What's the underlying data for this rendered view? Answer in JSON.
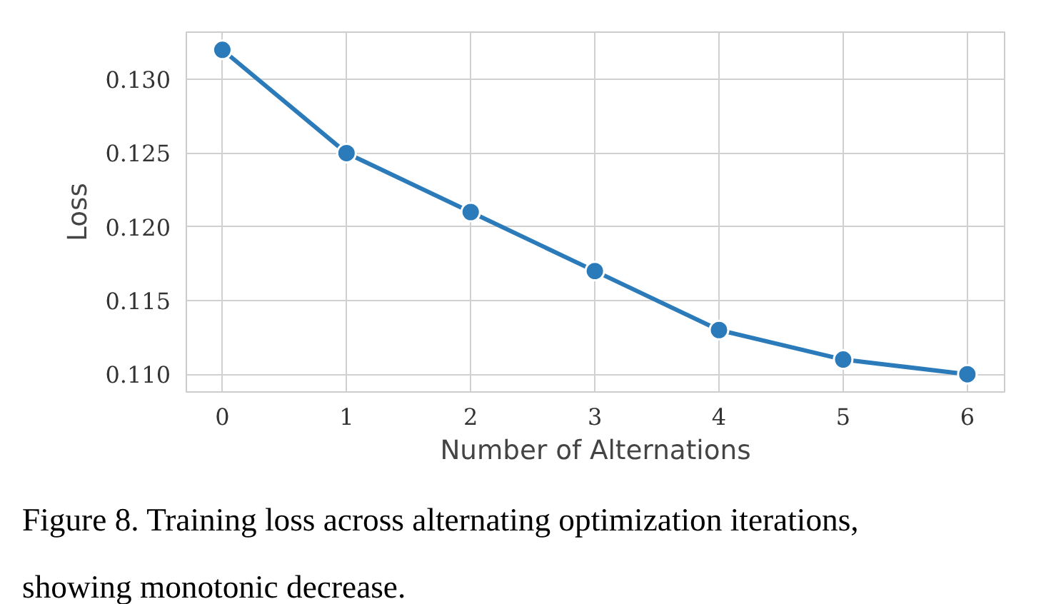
{
  "chart_data": {
    "type": "line",
    "xlabel": "Number of Alternations",
    "ylabel": "Loss",
    "x": [
      0,
      1,
      2,
      3,
      4,
      5,
      6
    ],
    "series": [
      {
        "color": "#2b7bba",
        "values": [
          0.132,
          0.125,
          0.121,
          0.117,
          0.113,
          0.111,
          0.11
        ]
      }
    ],
    "xlim": [
      -0.29,
      6.3
    ],
    "xticks": [
      0,
      1,
      2,
      3,
      4,
      5,
      6
    ],
    "ylim": [
      0.1088,
      0.1332
    ],
    "yticks": [
      {
        "value": 0.11,
        "label": "0.110"
      },
      {
        "value": 0.115,
        "label": "0.115"
      },
      {
        "value": 0.12,
        "label": "0.120"
      },
      {
        "value": 0.125,
        "label": "0.125"
      },
      {
        "value": 0.13,
        "label": "0.130"
      }
    ],
    "grid": true,
    "marker": "circle",
    "line_style": "solid",
    "annotations": [
      "Figure 8. Training loss across alternating optimization iterations, showing monotonic decrease."
    ]
  }
}
